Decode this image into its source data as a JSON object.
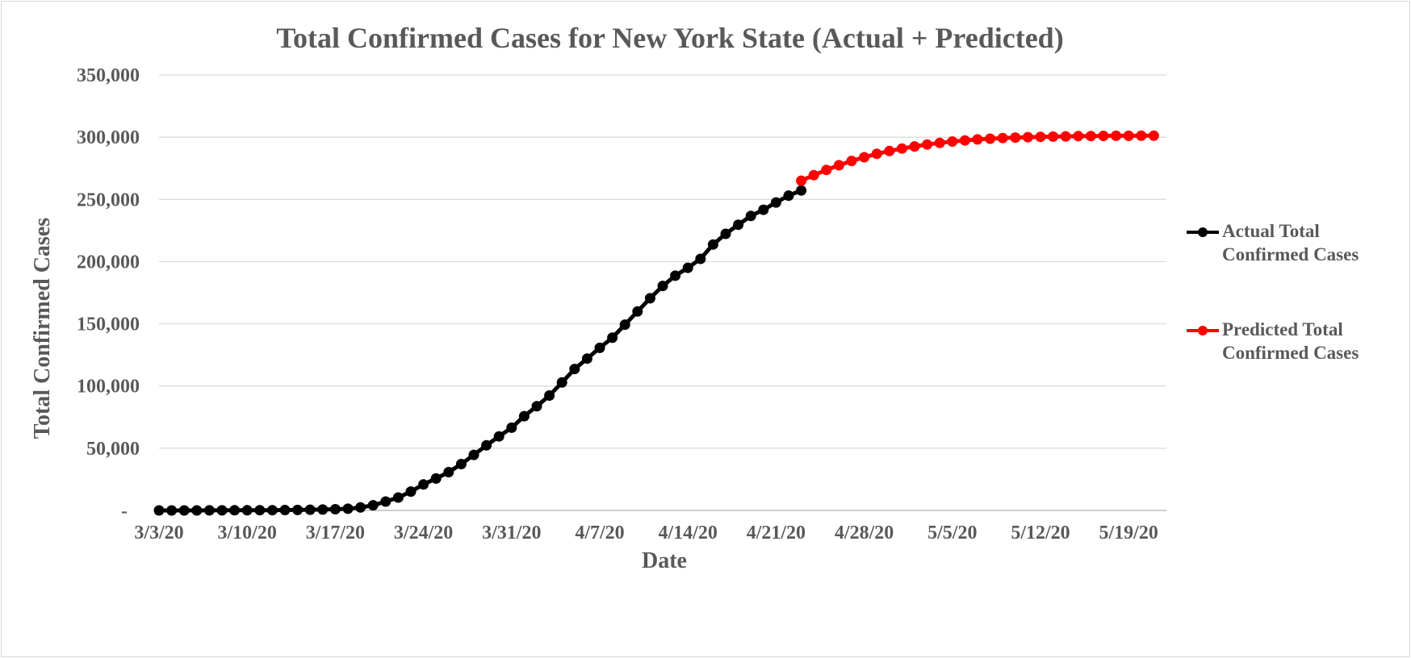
{
  "chart_data": {
    "type": "line",
    "title": "Total Confirmed Cases for New York State (Actual + Predicted)",
    "xlabel": "Date",
    "ylabel": "Total Confirmed Cases",
    "ylim": [
      0,
      350000
    ],
    "yticks": [
      0,
      50000,
      100000,
      150000,
      200000,
      250000,
      300000,
      350000
    ],
    "ytick_labels": [
      "-",
      "50,000",
      "100,000",
      "150,000",
      "200,000",
      "250,000",
      "300,000",
      "350,000"
    ],
    "xlim": [
      "2020-03-03",
      "2020-05-22"
    ],
    "xticks": [
      "2020-03-03",
      "2020-03-10",
      "2020-03-17",
      "2020-03-24",
      "2020-03-31",
      "2020-04-07",
      "2020-04-14",
      "2020-04-21",
      "2020-04-28",
      "2020-05-05",
      "2020-05-12",
      "2020-05-19"
    ],
    "xtick_labels": [
      "3/3/20",
      "3/10/20",
      "3/17/20",
      "3/24/20",
      "3/31/20",
      "4/7/20",
      "4/14/20",
      "4/21/20",
      "4/28/20",
      "5/5/20",
      "5/12/20",
      "5/19/20"
    ],
    "grid": true,
    "legend_position": "right",
    "series": [
      {
        "name": "Actual Total Confirmed Cases",
        "color": "#000000",
        "x_start": "2020-03-03",
        "values": [
          1,
          2,
          11,
          22,
          44,
          89,
          106,
          142,
          173,
          217,
          326,
          421,
          613,
          729,
          950,
          1374,
          2382,
          4152,
          7102,
          10356,
          15168,
          20875,
          25665,
          30811,
          37258,
          44635,
          52318,
          59513,
          66497,
          75795,
          83712,
          92381,
          102863,
          113704,
          122031,
          130689,
          138836,
          149316,
          159937,
          170512,
          180458,
          188694,
          195031,
          202208,
          213779,
          222284,
          229642,
          236732,
          241712,
          247512,
          253060,
          257216
        ]
      },
      {
        "name": "Predicted Total Confirmed Cases",
        "color": "#ff0000",
        "x_start": "2020-04-23",
        "values": [
          265000,
          269500,
          273700,
          277500,
          280900,
          283900,
          286600,
          288900,
          290900,
          292600,
          294100,
          295400,
          296500,
          297400,
          298200,
          298800,
          299300,
          299700,
          300000,
          300300,
          300500,
          300700,
          300850,
          300950,
          301050,
          301100,
          301150,
          301200,
          301200
        ]
      }
    ]
  }
}
